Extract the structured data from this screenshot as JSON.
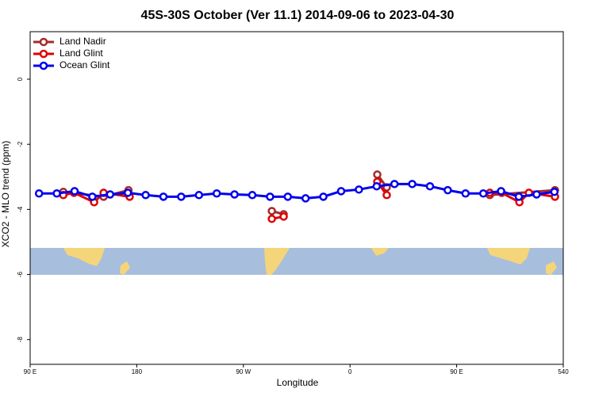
{
  "chart_data": {
    "type": "line",
    "title": "45S-30S October (Ver 11.1)   2014-09-06 to 2023-04-30",
    "xlabel": "Longitude",
    "ylabel": "XCO2 - MLO trend (ppm)",
    "xlim": [
      90,
      540
    ],
    "ylim": [
      -8.76,
      1.46
    ],
    "xticks": [
      {
        "value": 90,
        "label": "90 E"
      },
      180,
      {
        "value": 270,
        "label": "90 W"
      },
      {
        "value": 360,
        "label": "0"
      },
      {
        "value": 450,
        "label": "90 E"
      },
      540
    ],
    "yticks": [
      0,
      -2,
      -4,
      -6,
      -8
    ],
    "legend": "top-left",
    "series": [
      {
        "name": "Land Nadir",
        "color": "#a52a2a",
        "x": [
          118,
          152,
          173,
          null,
          294,
          304,
          null,
          383,
          391,
          null,
          478,
          533
        ],
        "values": [
          -3.46,
          -3.61,
          -3.41,
          null,
          -4.05,
          -4.15,
          null,
          -2.93,
          -3.32,
          null,
          -3.56,
          -3.41
        ]
      },
      {
        "name": "Land Glint",
        "color": "#e00000",
        "x": [
          118,
          127,
          144,
          152,
          174,
          null,
          294,
          304,
          null,
          383,
          391,
          null,
          478,
          488,
          503,
          511,
          533
        ],
        "values": [
          -3.56,
          -3.49,
          -3.78,
          -3.49,
          -3.61,
          null,
          -4.29,
          -4.22,
          null,
          -3.15,
          -3.56,
          null,
          -3.49,
          -3.49,
          -3.78,
          -3.49,
          -3.61
        ]
      },
      {
        "name": "Ocean Glint",
        "color": "#0000ee",
        "x": [
          97.5,
          112.5,
          127.5,
          142.5,
          157.5,
          172.5,
          187.5,
          202.5,
          217.5,
          232.5,
          247.5,
          262.5,
          277.5,
          292.5,
          307.5,
          322.5,
          337.5,
          352.5,
          367.5,
          382.5,
          397.5,
          412.5,
          427.5,
          442.5,
          457.5,
          472.5,
          487.5,
          502.5,
          517.5,
          532.5
        ],
        "values": [
          -3.51,
          -3.51,
          -3.44,
          -3.61,
          -3.54,
          -3.49,
          -3.56,
          -3.61,
          -3.61,
          -3.56,
          -3.51,
          -3.54,
          -3.56,
          -3.61,
          -3.61,
          -3.66,
          -3.61,
          -3.44,
          -3.39,
          -3.29,
          -3.22,
          -3.22,
          -3.29,
          -3.41,
          -3.51,
          -3.51,
          -3.44,
          -3.61,
          -3.54,
          -3.46
        ]
      }
    ]
  }
}
